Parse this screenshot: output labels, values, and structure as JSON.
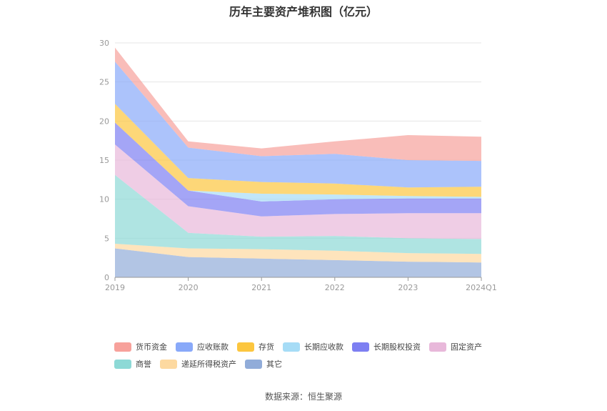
{
  "chart_data": {
    "type": "area",
    "stacked": true,
    "title": "历年主要资产堆积图（亿元）",
    "categories": [
      "2019",
      "2020",
      "2021",
      "2022",
      "2023",
      "2024Q1"
    ],
    "y_ticks": [
      "0",
      "5",
      "10",
      "15",
      "20",
      "25",
      "30"
    ],
    "ylim": [
      0,
      30
    ],
    "grid": true,
    "legend_position": "bottom",
    "series": [
      {
        "name": "其它",
        "color": "#91acd9",
        "values": [
          3.7,
          2.6,
          2.4,
          2.2,
          2.0,
          1.9
        ]
      },
      {
        "name": "递延所得税资产",
        "color": "#fdd9a0",
        "values": [
          0.6,
          1.1,
          1.2,
          1.2,
          1.1,
          1.1
        ]
      },
      {
        "name": "商誉",
        "color": "#8dd9d6",
        "values": [
          8.8,
          2.0,
          1.6,
          1.9,
          1.9,
          1.9
        ]
      },
      {
        "name": "固定资产",
        "color": "#e8b8da",
        "values": [
          3.9,
          3.4,
          2.6,
          2.8,
          3.2,
          3.3
        ]
      },
      {
        "name": "长期股权投资",
        "color": "#7d7ff2",
        "values": [
          2.8,
          2.0,
          1.9,
          1.9,
          1.9,
          1.9
        ]
      },
      {
        "name": "长期应收款",
        "color": "#a6dcf6",
        "values": [
          0.0,
          0.0,
          1.0,
          0.6,
          0.3,
          0.2
        ]
      },
      {
        "name": "存货",
        "color": "#fcc63f",
        "values": [
          2.4,
          1.6,
          1.5,
          1.4,
          1.1,
          1.3
        ]
      },
      {
        "name": "应收账款",
        "color": "#89a9f9",
        "values": [
          5.4,
          3.9,
          3.3,
          3.8,
          3.5,
          3.3
        ]
      },
      {
        "name": "货币资金",
        "color": "#f7a19b",
        "values": [
          1.8,
          0.8,
          1.0,
          1.6,
          3.2,
          3.1
        ]
      }
    ],
    "legend_rows": [
      [
        "货币资金",
        "应收账款",
        "存货",
        "长期应收款",
        "长期股权投资",
        "固定资产"
      ],
      [
        "商誉",
        "递延所得税资产",
        "其它"
      ]
    ]
  },
  "source": "数据来源：恒生聚源"
}
